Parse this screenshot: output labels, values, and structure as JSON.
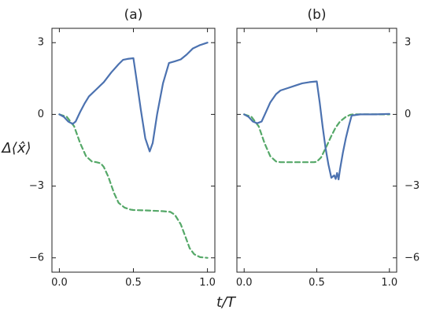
{
  "figure": {
    "xlabel": "t/T",
    "ylabel": "Δ⟨x̂⟩"
  },
  "chart_data": [
    {
      "type": "line",
      "title": "(a)",
      "xlim": [
        -0.05,
        1.05
      ],
      "ylim": [
        -6.6,
        3.6
      ],
      "xticks": [
        0.0,
        0.5,
        1.0
      ],
      "xtick_labels": [
        "0.0",
        "0.5",
        "1.0"
      ],
      "yticks": [
        3,
        0,
        -3,
        -6
      ],
      "ytick_labels": [
        "3",
        "0",
        "−3",
        "−6"
      ],
      "ytick_side": "left",
      "grid": false,
      "series": [
        {
          "color": "#4c72b0",
          "dash": "solid",
          "x": [
            0.0,
            0.03,
            0.06,
            0.09,
            0.11,
            0.14,
            0.17,
            0.2,
            0.25,
            0.3,
            0.35,
            0.4,
            0.43,
            0.46,
            0.5,
            0.52,
            0.55,
            0.58,
            0.61,
            0.63,
            0.66,
            0.7,
            0.74,
            0.78,
            0.82,
            0.86,
            0.9,
            0.95,
            1.0
          ],
          "y": [
            0.0,
            -0.1,
            -0.3,
            -0.4,
            -0.3,
            0.1,
            0.45,
            0.75,
            1.05,
            1.35,
            1.75,
            2.1,
            2.28,
            2.32,
            2.35,
            1.5,
            0.2,
            -1.0,
            -1.55,
            -1.2,
            0.0,
            1.3,
            2.15,
            2.22,
            2.3,
            2.5,
            2.75,
            2.9,
            3.0
          ]
        },
        {
          "color": "#55a868",
          "dash": "dashed",
          "x": [
            0.0,
            0.05,
            0.1,
            0.14,
            0.18,
            0.22,
            0.25,
            0.28,
            0.3,
            0.33,
            0.37,
            0.4,
            0.44,
            0.48,
            0.5,
            0.6,
            0.7,
            0.75,
            0.78,
            0.82,
            0.85,
            0.88,
            0.91,
            0.95,
            1.0
          ],
          "y": [
            0.0,
            -0.1,
            -0.5,
            -1.2,
            -1.75,
            -1.97,
            -2.0,
            -2.05,
            -2.2,
            -2.6,
            -3.3,
            -3.7,
            -3.9,
            -3.98,
            -4.0,
            -4.02,
            -4.05,
            -4.08,
            -4.2,
            -4.6,
            -5.1,
            -5.6,
            -5.85,
            -5.97,
            -6.0
          ]
        }
      ]
    },
    {
      "type": "line",
      "title": "(b)",
      "xlim": [
        -0.05,
        1.05
      ],
      "ylim": [
        -6.6,
        3.6
      ],
      "xticks": [
        0.0,
        0.5,
        1.0
      ],
      "xtick_labels": [
        "0.0",
        "0.5",
        "1.0"
      ],
      "yticks": [
        3,
        0,
        -3,
        -6
      ],
      "ytick_labels": [
        "3",
        "0",
        "−3",
        "−6"
      ],
      "ytick_side": "right",
      "grid": false,
      "series": [
        {
          "color": "#4c72b0",
          "dash": "solid",
          "x": [
            0.0,
            0.03,
            0.06,
            0.09,
            0.12,
            0.15,
            0.18,
            0.22,
            0.25,
            0.3,
            0.35,
            0.4,
            0.45,
            0.5,
            0.52,
            0.54,
            0.56,
            0.58,
            0.6,
            0.62,
            0.63,
            0.64,
            0.65,
            0.66,
            0.68,
            0.7,
            0.72,
            0.74,
            0.8,
            0.9,
            1.0
          ],
          "y": [
            0.0,
            -0.1,
            -0.3,
            -0.37,
            -0.3,
            0.1,
            0.5,
            0.85,
            1.0,
            1.1,
            1.2,
            1.3,
            1.35,
            1.38,
            0.5,
            -0.5,
            -1.4,
            -2.1,
            -2.65,
            -2.55,
            -2.7,
            -2.45,
            -2.72,
            -2.3,
            -1.6,
            -1.0,
            -0.5,
            -0.05,
            0.0,
            0.0,
            0.02
          ]
        },
        {
          "color": "#55a868",
          "dash": "dashed",
          "x": [
            0.0,
            0.05,
            0.1,
            0.14,
            0.18,
            0.22,
            0.25,
            0.3,
            0.4,
            0.48,
            0.5,
            0.53,
            0.57,
            0.6,
            0.63,
            0.66,
            0.7,
            0.73,
            0.75,
            0.8,
            0.9,
            1.0
          ],
          "y": [
            0.0,
            -0.1,
            -0.5,
            -1.2,
            -1.75,
            -1.97,
            -2.0,
            -2.0,
            -2.0,
            -2.0,
            -1.98,
            -1.8,
            -1.3,
            -0.9,
            -0.55,
            -0.3,
            -0.1,
            -0.02,
            0.0,
            0.0,
            0.0,
            0.0
          ]
        }
      ]
    }
  ]
}
